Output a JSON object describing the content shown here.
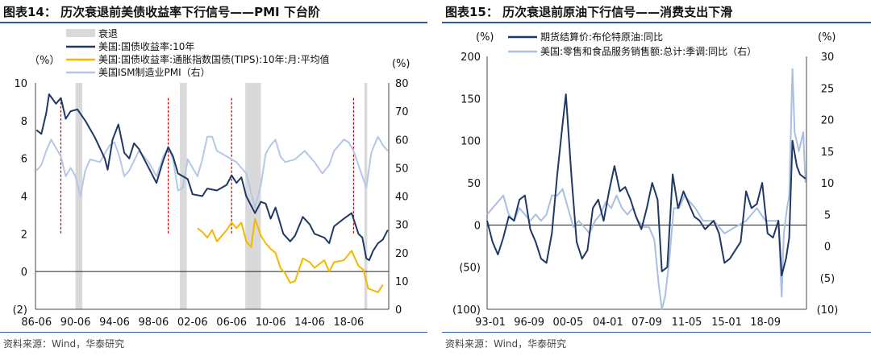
{
  "chart_data": [
    {
      "type": "line",
      "title": "图表14：  历次衰退前美债收益率下行信号——PMI 下台阶",
      "source": "资料来源：Wind，华泰研究",
      "left_unit": "（%）",
      "right_unit": "(%)",
      "ylim_left": [
        -2,
        10
      ],
      "ylim_right": [
        0,
        80
      ],
      "yticks_left": [
        "10",
        "8",
        "6",
        "4",
        "2",
        "0",
        "(2)"
      ],
      "yticks_right": [
        "80",
        "70",
        "60",
        "50",
        "40",
        "30",
        "20",
        "10",
        "0"
      ],
      "xlim": [
        1986.4,
        2022.6
      ],
      "xticks": [
        "86-06",
        "90-06",
        "94-06",
        "98-06",
        "02-06",
        "06-06",
        "10-06",
        "14-06",
        "18-06"
      ],
      "legend": [
        "衰退",
        "美国:国债收益率:10年",
        "美国:国债收益率:通胀指数国债(TIPS):10年:月:平均值",
        "美国ISM制造业PMI（右）"
      ],
      "colors": {
        "recession": "#d9d9d9",
        "t10y": "#1f3864",
        "tips": "#f5b800",
        "pmi": "#b4c7e7",
        "signal": "#c00000"
      },
      "recessions": [
        [
          1990.5,
          1991.2
        ],
        [
          2001.2,
          2001.9
        ],
        [
          2007.9,
          2009.5
        ],
        [
          2020.1,
          2020.4
        ]
      ],
      "signal_lines": [
        1989.0,
        2000.0,
        2006.5,
        2019.0
      ],
      "series": [
        {
          "name": "美国:国债收益率:10年",
          "axis": "left",
          "x": [
            1986.5,
            1987.0,
            1987.5,
            1987.8,
            1988.5,
            1989.0,
            1989.5,
            1990.0,
            1990.7,
            1991.5,
            1992.5,
            1993.5,
            1993.8,
            1994.3,
            1994.9,
            1995.5,
            1996.0,
            1996.5,
            1997.0,
            1997.5,
            1998.0,
            1998.8,
            1999.5,
            2000.0,
            2000.5,
            2001.0,
            2002.0,
            2002.5,
            2003.5,
            2004.0,
            2005.0,
            2006.0,
            2006.5,
            2007.0,
            2007.5,
            2008.0,
            2008.9,
            2009.5,
            2010.0,
            2010.5,
            2011.0,
            2011.8,
            2012.5,
            2013.0,
            2013.8,
            2014.5,
            2015.0,
            2016.0,
            2016.5,
            2017.0,
            2018.0,
            2018.8,
            2019.5,
            2019.9,
            2020.3,
            2020.6,
            2021.0,
            2021.5,
            2022.0,
            2022.5
          ],
          "values": [
            7.5,
            7.3,
            8.4,
            9.4,
            8.9,
            9.2,
            8.1,
            8.5,
            8.6,
            8.0,
            7.1,
            6.0,
            5.4,
            7.0,
            7.8,
            6.3,
            6.0,
            6.8,
            6.5,
            6.0,
            5.5,
            4.7,
            5.9,
            6.6,
            6.1,
            5.2,
            4.9,
            4.1,
            4.0,
            4.4,
            4.3,
            4.6,
            5.1,
            4.7,
            5.0,
            4.0,
            3.1,
            3.7,
            3.6,
            2.8,
            3.4,
            2.0,
            1.6,
            1.9,
            2.9,
            2.5,
            2.0,
            1.8,
            1.5,
            2.4,
            2.8,
            3.1,
            2.0,
            1.8,
            0.7,
            0.6,
            1.1,
            1.5,
            1.7,
            2.2
          ]
        },
        {
          "name": "美国:国债收益率:通胀指数国债(TIPS):10年:月:平均值",
          "axis": "left",
          "x": [
            2003.0,
            2003.5,
            2004.0,
            2004.5,
            2005.0,
            2005.5,
            2006.0,
            2006.5,
            2007.0,
            2007.5,
            2008.0,
            2008.5,
            2008.9,
            2009.5,
            2010.0,
            2010.5,
            2011.0,
            2011.5,
            2012.0,
            2012.5,
            2013.0,
            2013.8,
            2014.5,
            2015.0,
            2016.0,
            2016.5,
            2017.0,
            2018.0,
            2018.8,
            2019.5,
            2020.0,
            2020.5,
            2021.0,
            2021.5,
            2022.0
          ],
          "values": [
            2.3,
            2.1,
            1.8,
            2.2,
            1.6,
            1.9,
            2.2,
            2.6,
            2.3,
            2.6,
            1.6,
            1.3,
            2.8,
            1.9,
            1.5,
            1.2,
            1.0,
            0.2,
            -0.1,
            -0.6,
            -0.5,
            0.7,
            0.5,
            0.2,
            0.6,
            0.0,
            0.5,
            0.6,
            1.1,
            0.3,
            0.1,
            -0.9,
            -1.0,
            -1.1,
            -0.7
          ]
        },
        {
          "name": "美国ISM制造业PMI（右）",
          "axis": "right",
          "x": [
            1986.5,
            1987.0,
            1987.5,
            1988.0,
            1988.5,
            1989.0,
            1989.5,
            1990.0,
            1990.5,
            1991.0,
            1991.5,
            1992.0,
            1993.0,
            1994.0,
            1994.5,
            1995.0,
            1995.5,
            1996.0,
            1997.0,
            1998.0,
            1998.8,
            1999.5,
            2000.0,
            2000.5,
            2001.0,
            2001.5,
            2002.0,
            2002.5,
            2003.0,
            2003.5,
            2004.0,
            2004.5,
            2005.0,
            2006.0,
            2006.5,
            2007.0,
            2008.0,
            2008.9,
            2009.5,
            2010.0,
            2010.5,
            2011.0,
            2011.5,
            2012.0,
            2013.0,
            2014.0,
            2015.0,
            2015.8,
            2016.5,
            2017.0,
            2018.0,
            2018.5,
            2019.0,
            2019.8,
            2020.3,
            2020.8,
            2021.0,
            2021.5,
            2022.0,
            2022.5
          ],
          "values": [
            49,
            51,
            56,
            60,
            57,
            54,
            47,
            50,
            47,
            40,
            49,
            53,
            52,
            58,
            59,
            54,
            47,
            49,
            56,
            52,
            47,
            54,
            57,
            53,
            42,
            43,
            53,
            50,
            47,
            53,
            61,
            61,
            56,
            54,
            53,
            52,
            48,
            36,
            44,
            55,
            58,
            60,
            54,
            52,
            53,
            56,
            52,
            48,
            51,
            56,
            60,
            59,
            56,
            48,
            43,
            55,
            57,
            61,
            58,
            56
          ]
        }
      ]
    },
    {
      "type": "line",
      "title": "图表15：  历次衰退前原油下行信号——消费支出下滑",
      "source": "资料来源：Wind，华泰研究",
      "left_unit": "(%)",
      "right_unit": "(%)",
      "ylim_left": [
        -100,
        200
      ],
      "ylim_right": [
        -10,
        30
      ],
      "yticks_left": [
        "200",
        "150",
        "100",
        "50",
        "0",
        "(50)",
        "(100)"
      ],
      "yticks_right": [
        "30",
        "25",
        "20",
        "15",
        "10",
        "5",
        "0",
        "(5)",
        "(10)"
      ],
      "xlim": [
        1993.0,
        2022.6
      ],
      "xticks": [
        "93-01",
        "96-09",
        "00-05",
        "04-01",
        "07-09",
        "11-05",
        "15-01",
        "18-09"
      ],
      "legend": [
        "期货结算价:布伦特原油:同比",
        "美国:零售和食品服务销售额:总计:季调:同比（右）"
      ],
      "colors": {
        "brent": "#1f3864",
        "retail": "#a9bfe0"
      },
      "series": [
        {
          "name": "期货结算价:布伦特原油:同比",
          "axis": "left",
          "x": [
            1993.0,
            1993.5,
            1994.0,
            1994.5,
            1995.0,
            1995.5,
            1996.0,
            1996.5,
            1997.0,
            1997.5,
            1998.0,
            1998.5,
            1999.0,
            1999.5,
            2000.0,
            2000.3,
            2000.8,
            2001.3,
            2001.8,
            2002.3,
            2002.8,
            2003.3,
            2003.8,
            2004.3,
            2004.8,
            2005.3,
            2005.8,
            2006.3,
            2006.8,
            2007.3,
            2007.8,
            2008.3,
            2008.8,
            2009.2,
            2009.7,
            2010.2,
            2010.7,
            2011.2,
            2011.7,
            2012.2,
            2012.7,
            2013.2,
            2014.0,
            2014.5,
            2015.0,
            2015.5,
            2016.0,
            2016.5,
            2017.0,
            2017.5,
            2018.0,
            2018.5,
            2019.0,
            2019.5,
            2020.0,
            2020.3,
            2020.7,
            2021.0,
            2021.3,
            2021.7,
            2022.0,
            2022.5
          ],
          "values": [
            5,
            -20,
            -35,
            -15,
            10,
            5,
            30,
            35,
            -5,
            -20,
            -40,
            -45,
            -10,
            60,
            120,
            155,
            60,
            -20,
            -40,
            -30,
            20,
            30,
            5,
            40,
            70,
            40,
            45,
            30,
            10,
            -5,
            20,
            50,
            30,
            -55,
            -50,
            60,
            20,
            40,
            25,
            10,
            5,
            -5,
            5,
            -10,
            -45,
            -40,
            -30,
            -20,
            40,
            20,
            25,
            50,
            -10,
            -15,
            5,
            -60,
            -40,
            -15,
            100,
            70,
            60,
            55
          ]
        },
        {
          "name": "美国:零售和食品服务销售额:总计:季调:同比（右）",
          "axis": "right",
          "x": [
            1993.0,
            1993.5,
            1994.0,
            1994.5,
            1995.0,
            1995.5,
            1996.0,
            1996.5,
            1997.0,
            1997.5,
            1998.0,
            1998.5,
            1999.0,
            1999.5,
            2000.0,
            2000.5,
            2001.0,
            2001.5,
            2002.0,
            2002.5,
            2003.0,
            2003.5,
            2004.0,
            2004.5,
            2005.0,
            2005.5,
            2006.0,
            2006.5,
            2007.0,
            2007.5,
            2008.0,
            2008.5,
            2008.9,
            2009.2,
            2009.5,
            2009.9,
            2010.3,
            2010.8,
            2011.3,
            2011.8,
            2012.3,
            2013.0,
            2014.0,
            2015.0,
            2016.0,
            2017.0,
            2018.0,
            2018.8,
            2019.5,
            2020.0,
            2020.3,
            2020.5,
            2020.8,
            2021.0,
            2021.3,
            2021.5,
            2021.9,
            2022.3,
            2022.5
          ],
          "values": [
            5,
            6,
            7,
            8,
            5,
            4,
            6,
            5,
            4,
            5,
            4,
            5,
            8,
            8,
            9,
            6,
            3,
            4,
            3,
            2,
            4,
            5,
            7,
            6,
            8,
            6,
            5,
            6,
            4,
            3,
            3,
            1,
            -6,
            -10,
            -8,
            -2,
            6,
            6,
            8,
            7,
            6,
            4,
            4,
            2,
            3,
            4,
            6,
            4,
            4,
            4,
            -8,
            2,
            6,
            8,
            28,
            18,
            15,
            18,
            10
          ]
        }
      ]
    }
  ]
}
